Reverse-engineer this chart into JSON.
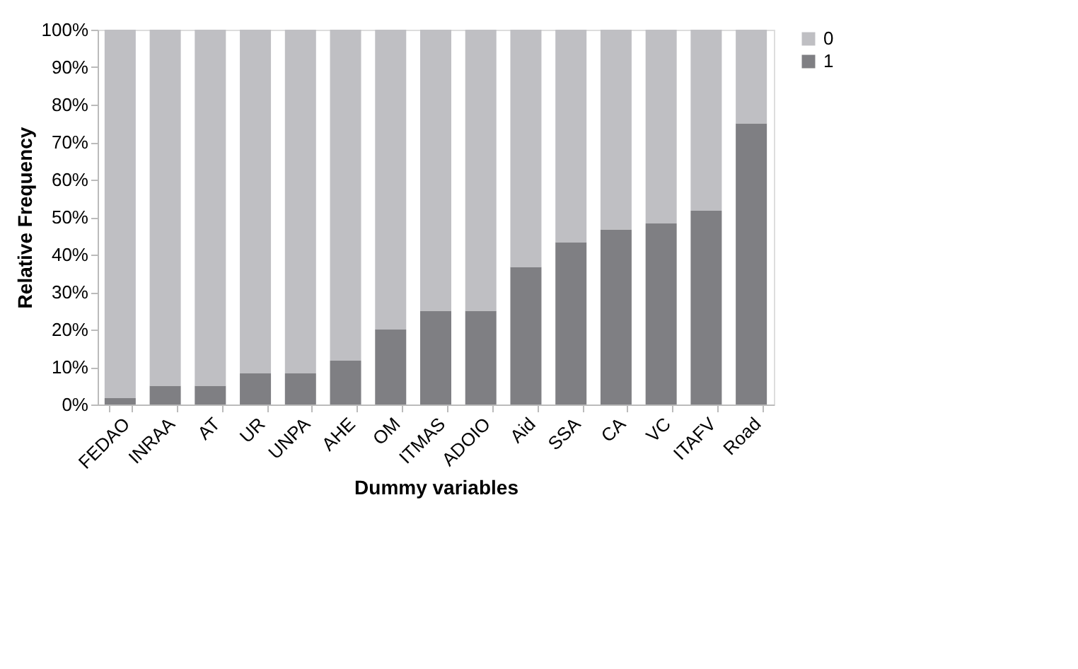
{
  "chart_data": {
    "type": "bar",
    "stacked": true,
    "xlabel": "Dummy variables",
    "ylabel": "Relative Frequency",
    "categories": [
      "FEDAO",
      "INRAA",
      "AT",
      "UR",
      "UNPA",
      "AHE",
      "OM",
      "ITMAS",
      "ADOIO",
      "Aid",
      "SSA",
      "CA",
      "VC",
      "ITAFV",
      "Road"
    ],
    "series": [
      {
        "name": "1",
        "color": "#7f7f83",
        "values": [
          1.7,
          5,
          5,
          8.3,
          8.3,
          11.7,
          20,
          25,
          25,
          36.7,
          43.3,
          46.7,
          48.3,
          51.7,
          75
        ]
      },
      {
        "name": "0",
        "color": "#bfbfc3",
        "values": [
          98.3,
          95,
          95,
          91.7,
          91.7,
          88.3,
          80,
          75,
          75,
          63.3,
          56.7,
          53.3,
          51.7,
          48.3,
          25
        ]
      }
    ],
    "ylim": [
      0,
      100
    ],
    "yticks": [
      {
        "value": 0,
        "label": "0%"
      },
      {
        "value": 10,
        "label": "10%"
      },
      {
        "value": 20,
        "label": "20%"
      },
      {
        "value": 30,
        "label": "30%"
      },
      {
        "value": 40,
        "label": "40%"
      },
      {
        "value": 50,
        "label": "50%"
      },
      {
        "value": 60,
        "label": "60%"
      },
      {
        "value": 70,
        "label": "70%"
      },
      {
        "value": 80,
        "label": "80%"
      },
      {
        "value": 90,
        "label": "90%"
      },
      {
        "value": 100,
        "label": "100%"
      }
    ],
    "grid": false,
    "legend": "right"
  }
}
